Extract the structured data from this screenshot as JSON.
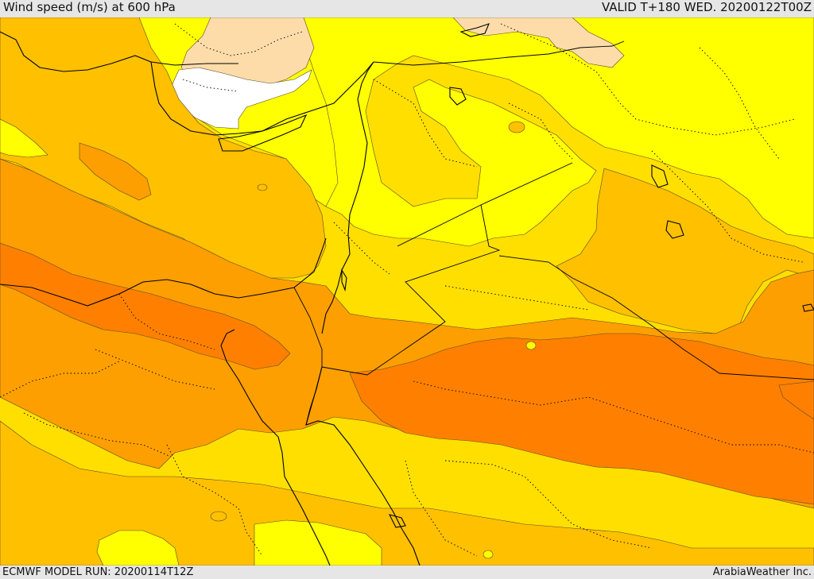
{
  "header": {
    "title": "Wind speed (m/s) at 600 hPa",
    "valid": "VALID T+180 WED. 20200122T00Z"
  },
  "footer": {
    "model_run": "ECMWF MODEL RUN: 20200114T12Z",
    "credit": "ArabiaWeather Inc."
  },
  "colors": {
    "white": "#ffffff",
    "peach": "#fddcaa",
    "yellow": "#ffff00",
    "gold": "#ffdf00",
    "amber": "#ffc000",
    "orange": "#fd9f00",
    "dark_orange": "#ff8000"
  }
}
